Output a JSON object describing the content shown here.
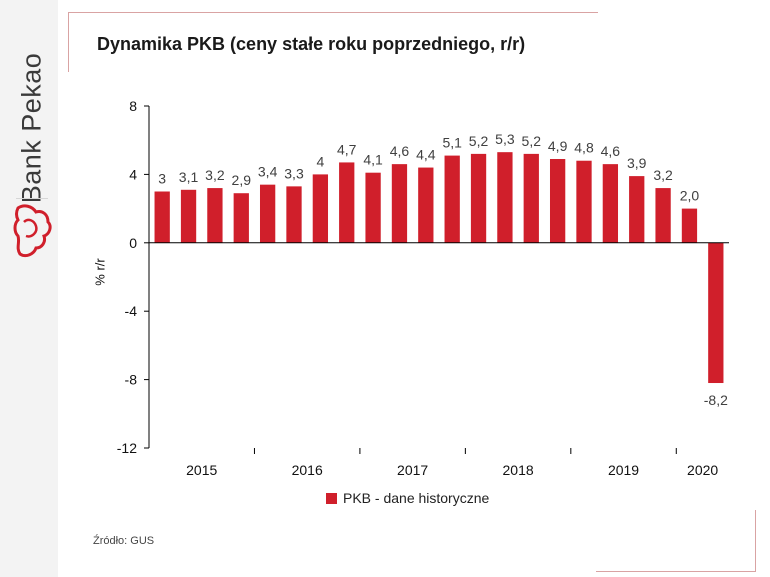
{
  "brand": {
    "name": "Bank Pekao"
  },
  "colors": {
    "bar": "#d01f2b",
    "axis": "#000000",
    "text": "#404040"
  },
  "chart_data": {
    "type": "bar",
    "title": "Dynamika PKB (ceny stałe roku poprzedniego, r/r)",
    "ylabel": "% r/r",
    "xlabel": "",
    "ylim": [
      -12,
      8
    ],
    "yticks": [
      8,
      4,
      0,
      -4,
      -8,
      -12
    ],
    "ytick_labels": [
      "8",
      "4",
      "0",
      "-4",
      "-8",
      "-12"
    ],
    "categories": [
      "2015 Q1",
      "2015 Q2",
      "2015 Q3",
      "2015 Q4",
      "2016 Q1",
      "2016 Q2",
      "2016 Q3",
      "2016 Q4",
      "2017 Q1",
      "2017 Q2",
      "2017 Q3",
      "2017 Q4",
      "2018 Q1",
      "2018 Q2",
      "2018 Q3",
      "2018 Q4",
      "2019 Q1",
      "2019 Q2",
      "2019 Q3",
      "2019 Q4",
      "2020 Q1",
      "2020 Q2"
    ],
    "values": [
      3,
      3.1,
      3.2,
      2.9,
      3.4,
      3.3,
      4,
      4.7,
      4.1,
      4.6,
      4.4,
      5.1,
      5.2,
      5.3,
      5.2,
      4.9,
      4.8,
      4.6,
      3.9,
      3.2,
      2.0,
      -8.2
    ],
    "data_labels": [
      "3",
      "3,1",
      "3,2",
      "2,9",
      "3,4",
      "3,3",
      "4",
      "4,7",
      "4,1",
      "4,6",
      "4,4",
      "5,1",
      "5,2",
      "5,3",
      "5,2",
      "4,9",
      "4,8",
      "4,6",
      "3,9",
      "3,2",
      "2,0",
      "-8,2"
    ],
    "x_year_labels": [
      "2015",
      "2016",
      "2017",
      "2018",
      "2019",
      "2020"
    ],
    "series": [
      {
        "name": "PKB - dane historyczne"
      }
    ],
    "legend_position": "bottom",
    "grid": false
  },
  "footer": {
    "source": "Źródło: GUS"
  }
}
